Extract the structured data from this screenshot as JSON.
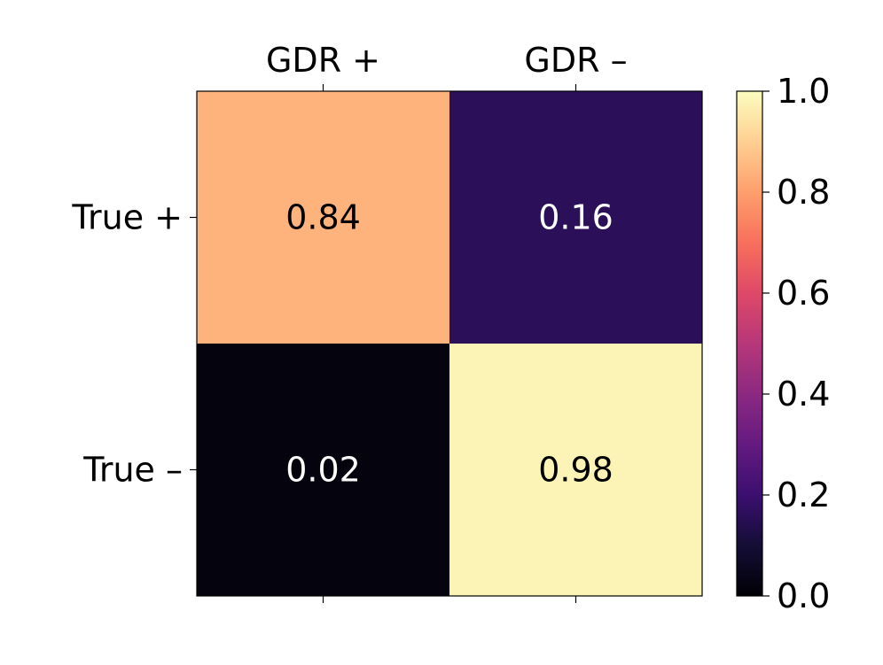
{
  "chart_data": {
    "type": "heatmap",
    "title": "",
    "xlabel": "",
    "ylabel": "",
    "x_categories": [
      "GDR +",
      "GDR –"
    ],
    "y_categories": [
      "True +",
      "True –"
    ],
    "values": [
      [
        0.84,
        0.16
      ],
      [
        0.02,
        0.98
      ]
    ],
    "value_labels": [
      [
        "0.84",
        "0.16"
      ],
      [
        "0.02",
        "0.98"
      ]
    ],
    "colormap": "magma",
    "colorbar": {
      "range": [
        0.0,
        1.0
      ],
      "ticks": [
        "0.0",
        "0.2",
        "0.4",
        "0.6",
        "0.8",
        "1.0"
      ]
    },
    "x_axis_position": "top",
    "grid": false
  }
}
